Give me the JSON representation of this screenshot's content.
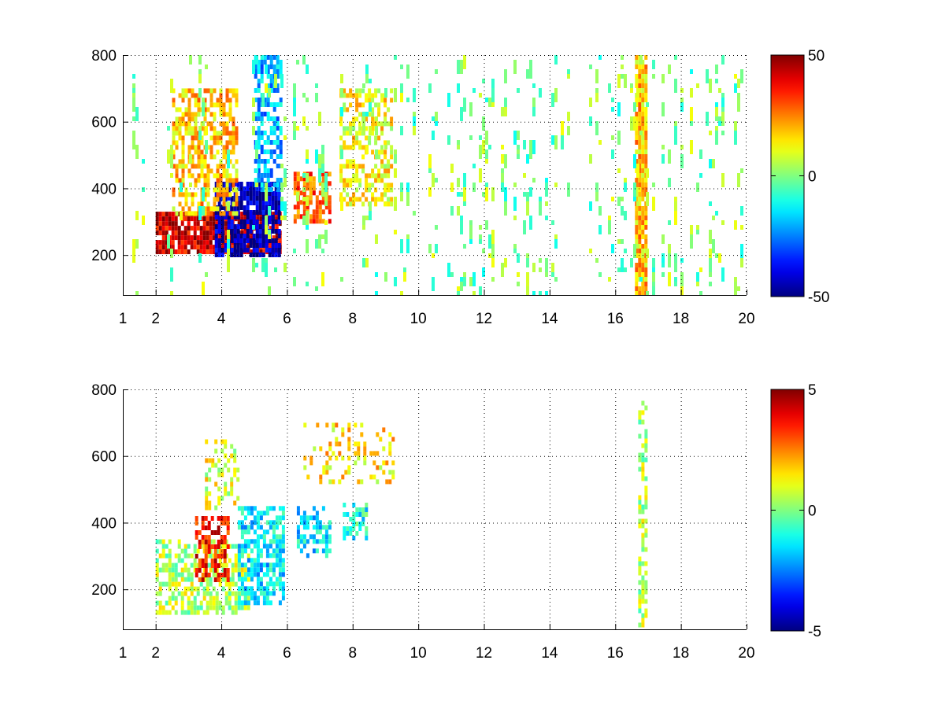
{
  "chart_data": [
    {
      "type": "heatmap",
      "title": "",
      "xlabel": "",
      "ylabel": "",
      "xlim": [
        1,
        20
      ],
      "ylim": [
        80,
        800
      ],
      "grid": true,
      "xticks": [
        1,
        2,
        4,
        6,
        8,
        10,
        12,
        14,
        16,
        18,
        20
      ],
      "yticks": [
        200,
        400,
        600,
        800
      ],
      "colorbar": {
        "min": -50,
        "max": 50,
        "ticks": [
          50,
          0,
          -50
        ],
        "colormap": "jet"
      },
      "features": [
        {
          "kind": "band",
          "x0": 2.0,
          "x1": 5.8,
          "y0": 210,
          "y1": 330,
          "value": 42,
          "density": 0.9
        },
        {
          "kind": "band",
          "x0": 3.8,
          "x1": 5.8,
          "y0": 200,
          "y1": 420,
          "value": -45,
          "density": 0.8
        },
        {
          "kind": "band",
          "x0": 2.5,
          "x1": 4.5,
          "y0": 320,
          "y1": 700,
          "value": 18,
          "density": 0.55
        },
        {
          "kind": "band",
          "x0": 5.0,
          "x1": 5.8,
          "y0": 400,
          "y1": 800,
          "value": -20,
          "density": 0.6
        },
        {
          "kind": "band",
          "x0": 6.2,
          "x1": 7.3,
          "y0": 300,
          "y1": 450,
          "value": 28,
          "density": 0.7
        },
        {
          "kind": "band",
          "x0": 7.6,
          "x1": 9.2,
          "y0": 360,
          "y1": 700,
          "value": 12,
          "density": 0.55
        },
        {
          "kind": "band",
          "x0": 16.6,
          "x1": 16.9,
          "y0": 80,
          "y1": 800,
          "value": 18,
          "density": 0.9
        },
        {
          "kind": "noise",
          "x0": 1.0,
          "x1": 20.0,
          "y0": 80,
          "y1": 800,
          "value": 0,
          "density": 0.12
        }
      ]
    },
    {
      "type": "heatmap",
      "title": "",
      "xlabel": "",
      "ylabel": "",
      "xlim": [
        1,
        20
      ],
      "ylim": [
        80,
        800
      ],
      "grid": true,
      "xticks": [
        1,
        2,
        4,
        6,
        8,
        10,
        12,
        14,
        16,
        18,
        20
      ],
      "yticks": [
        200,
        400,
        600,
        800
      ],
      "colorbar": {
        "min": -5,
        "max": 5,
        "ticks": [
          5,
          0,
          -5
        ],
        "colormap": "jet"
      },
      "features": [
        {
          "kind": "band",
          "x0": 2.0,
          "x1": 4.8,
          "y0": 130,
          "y1": 350,
          "value": 0.5,
          "density": 0.55
        },
        {
          "kind": "band",
          "x0": 3.2,
          "x1": 4.2,
          "y0": 230,
          "y1": 420,
          "value": 3.5,
          "density": 0.5
        },
        {
          "kind": "band",
          "x0": 4.5,
          "x1": 5.9,
          "y0": 160,
          "y1": 450,
          "value": -1.5,
          "density": 0.7
        },
        {
          "kind": "band",
          "x0": 3.5,
          "x1": 4.5,
          "y0": 450,
          "y1": 650,
          "value": 1.0,
          "density": 0.3
        },
        {
          "kind": "band",
          "x0": 6.3,
          "x1": 7.3,
          "y0": 300,
          "y1": 450,
          "value": -1.5,
          "density": 0.5
        },
        {
          "kind": "band",
          "x0": 7.7,
          "x1": 8.4,
          "y0": 360,
          "y1": 460,
          "value": -1.0,
          "density": 0.6
        },
        {
          "kind": "band",
          "x0": 6.5,
          "x1": 9.2,
          "y0": 520,
          "y1": 700,
          "value": 1.5,
          "density": 0.25
        },
        {
          "kind": "band",
          "x0": 16.7,
          "x1": 16.9,
          "y0": 90,
          "y1": 780,
          "value": 0.5,
          "density": 0.5
        }
      ]
    }
  ]
}
